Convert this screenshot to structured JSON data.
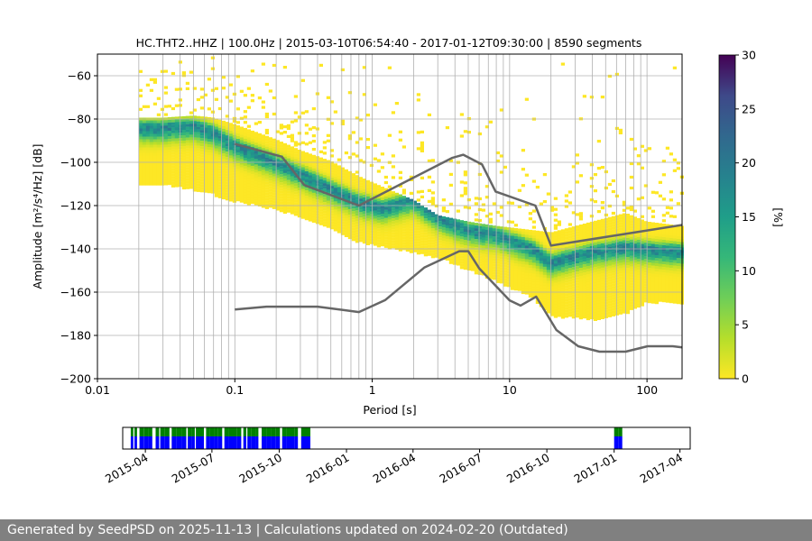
{
  "chart_data": [
    {
      "type": "heatmap",
      "title": "HC.THT2..HHZ | 100.0Hz | 2015-03-10T06:54:40 - 2017-01-12T09:30:00 | 8590 segments",
      "xlabel": "Period [s]",
      "ylabel": "Amplitude [m²/s⁴/Hz] [dB]",
      "xscale": "log",
      "xlim": [
        0.01,
        180
      ],
      "ylim": [
        -200,
        -50
      ],
      "x_tick_labels": [
        "0.01",
        "0.1",
        "1",
        "10",
        "100"
      ],
      "y_tick_labels": [
        "−60",
        "−80",
        "−100",
        "−120",
        "−140",
        "−160",
        "−180",
        "−200"
      ],
      "grid": true,
      "colorbar": {
        "label": "[%]",
        "range": [
          0,
          30
        ],
        "tick_labels": [
          "0",
          "5",
          "10",
          "15",
          "20",
          "25",
          "30"
        ],
        "colormap": "viridis"
      },
      "psd_mode": {
        "period": [
          0.02,
          0.03,
          0.05,
          0.07,
          0.1,
          0.2,
          0.3,
          0.5,
          0.8,
          1.2,
          2,
          3,
          5,
          8,
          15,
          20,
          40,
          70,
          100,
          180
        ],
        "db": [
          -84,
          -84,
          -83,
          -86,
          -92,
          -100,
          -105,
          -112,
          -118,
          -121,
          -117,
          -125,
          -131,
          -133,
          -140,
          -146,
          -141,
          -139,
          -140,
          -141
        ]
      },
      "psd_max": {
        "period": [
          0.02,
          0.03,
          0.05,
          0.07,
          0.1,
          0.2,
          0.3,
          0.5,
          0.8,
          1.2,
          2,
          3,
          5,
          8,
          15,
          20,
          40,
          70,
          100,
          180
        ],
        "db": [
          -80,
          -80,
          -79,
          -80,
          -83,
          -90,
          -95,
          -100,
          -107,
          -112,
          -118,
          -125,
          -128,
          -130,
          -132,
          -133,
          -128,
          -124,
          -128,
          -130
        ]
      },
      "psd_min": {
        "period": [
          0.02,
          0.03,
          0.05,
          0.07,
          0.1,
          0.2,
          0.3,
          0.5,
          0.8,
          1.2,
          2,
          3,
          5,
          8,
          15,
          20,
          40,
          70,
          100,
          180
        ],
        "db": [
          -110,
          -110,
          -113,
          -115,
          -118,
          -122,
          -125,
          -130,
          -137,
          -139,
          -142,
          -144,
          -150,
          -155,
          -163,
          -171,
          -173,
          -170,
          -165,
          -165
        ]
      },
      "nhnm": {
        "period": [
          0.1,
          0.22,
          0.32,
          0.8,
          3.8,
          4.6,
          6.3,
          7.9,
          15.4,
          20,
          354.8
        ],
        "db": [
          -91.5,
          -97.4,
          -110.5,
          -120,
          -98,
          -96.5,
          -101,
          -113.5,
          -120,
          -138.5,
          -126
        ]
      },
      "nlnm": {
        "period": [
          0.1,
          0.17,
          0.4,
          0.8,
          1.24,
          2.4,
          4.3,
          5,
          6,
          10,
          12,
          15.6,
          21.9,
          31.6,
          45,
          70,
          101,
          154,
          328
        ],
        "db": [
          -168,
          -166.7,
          -166.7,
          -169.2,
          -163.7,
          -148.6,
          -141.1,
          -141.1,
          -149,
          -163.8,
          -166.2,
          -162.1,
          -177.5,
          -185,
          -187.5,
          -187.5,
          -185,
          -185,
          -187.5
        ]
      }
    },
    {
      "type": "timeline",
      "x_tick_labels": [
        "2015-04",
        "2015-07",
        "2015-10",
        "2016-01",
        "2016-04",
        "2016-07",
        "2016-10",
        "2017-01",
        "2017-04"
      ],
      "xlim": [
        "2015-03-01",
        "2017-04-15"
      ],
      "data_intervals": [
        [
          "2015-03-12",
          "2015-03-22"
        ],
        [
          "2015-03-24",
          "2015-04-12"
        ],
        [
          "2015-04-15",
          "2015-05-04"
        ],
        [
          "2015-05-07",
          "2015-05-27"
        ],
        [
          "2015-05-29",
          "2015-06-20"
        ],
        [
          "2015-06-23",
          "2015-07-15"
        ],
        [
          "2015-07-18",
          "2015-08-10"
        ],
        [
          "2015-08-13",
          "2015-09-04"
        ],
        [
          "2015-09-07",
          "2015-10-02"
        ],
        [
          "2015-10-05",
          "2015-10-28"
        ],
        [
          "2015-10-31",
          "2015-11-14"
        ],
        [
          "2017-01-01",
          "2017-01-12"
        ]
      ],
      "colors": {
        "data": "#0000ff",
        "processed": "#008000"
      }
    }
  ],
  "footer": {
    "text": "Generated by SeedPSD on 2025-11-13 | Calculations updated on 2024-02-20 (Outdated)"
  }
}
